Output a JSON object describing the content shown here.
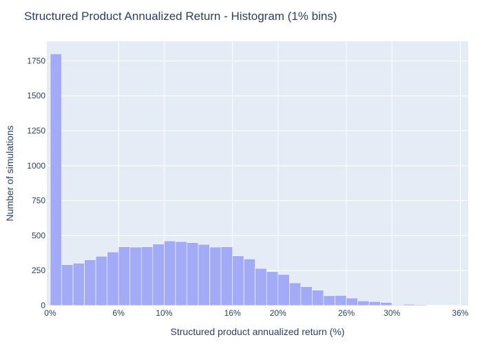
{
  "chart_data": {
    "type": "bar",
    "title": "Structured Product Annualized Return - Histogram (1% bins)",
    "xlabel": "Structured product annualized return (%)",
    "ylabel": "Number of simulations",
    "xlim": [
      -0.3,
      36.7
    ],
    "ylim": [
      0,
      1890
    ],
    "x_ticks": [
      0,
      6,
      10,
      16,
      20,
      26,
      30,
      36
    ],
    "x_tick_labels": [
      "0%",
      "6%",
      "10%",
      "16%",
      "20%",
      "26%",
      "30%",
      "36%"
    ],
    "y_ticks": [
      0,
      250,
      500,
      750,
      1000,
      1250,
      1500,
      1750
    ],
    "y_tick_labels": [
      "0",
      "250",
      "500",
      "750",
      "1000",
      "1250",
      "1500",
      "1750"
    ],
    "bin_width": 1,
    "bins_start": [
      0,
      1,
      2,
      3,
      4,
      5,
      6,
      7,
      8,
      9,
      10,
      11,
      12,
      13,
      14,
      15,
      16,
      17,
      18,
      19,
      20,
      21,
      22,
      23,
      24,
      25,
      26,
      27,
      28,
      29,
      30,
      31,
      32,
      33,
      34,
      35
    ],
    "values": [
      1800,
      292,
      302,
      327,
      352,
      383,
      420,
      418,
      420,
      440,
      462,
      457,
      450,
      437,
      418,
      420,
      355,
      333,
      265,
      242,
      222,
      162,
      135,
      110,
      70,
      72,
      53,
      33,
      28,
      22,
      5,
      9,
      6,
      2,
      2,
      1
    ],
    "bar_color": "#a3abf7",
    "plot_bg_color": "#e5ecf6",
    "grid": true,
    "legend": false
  }
}
